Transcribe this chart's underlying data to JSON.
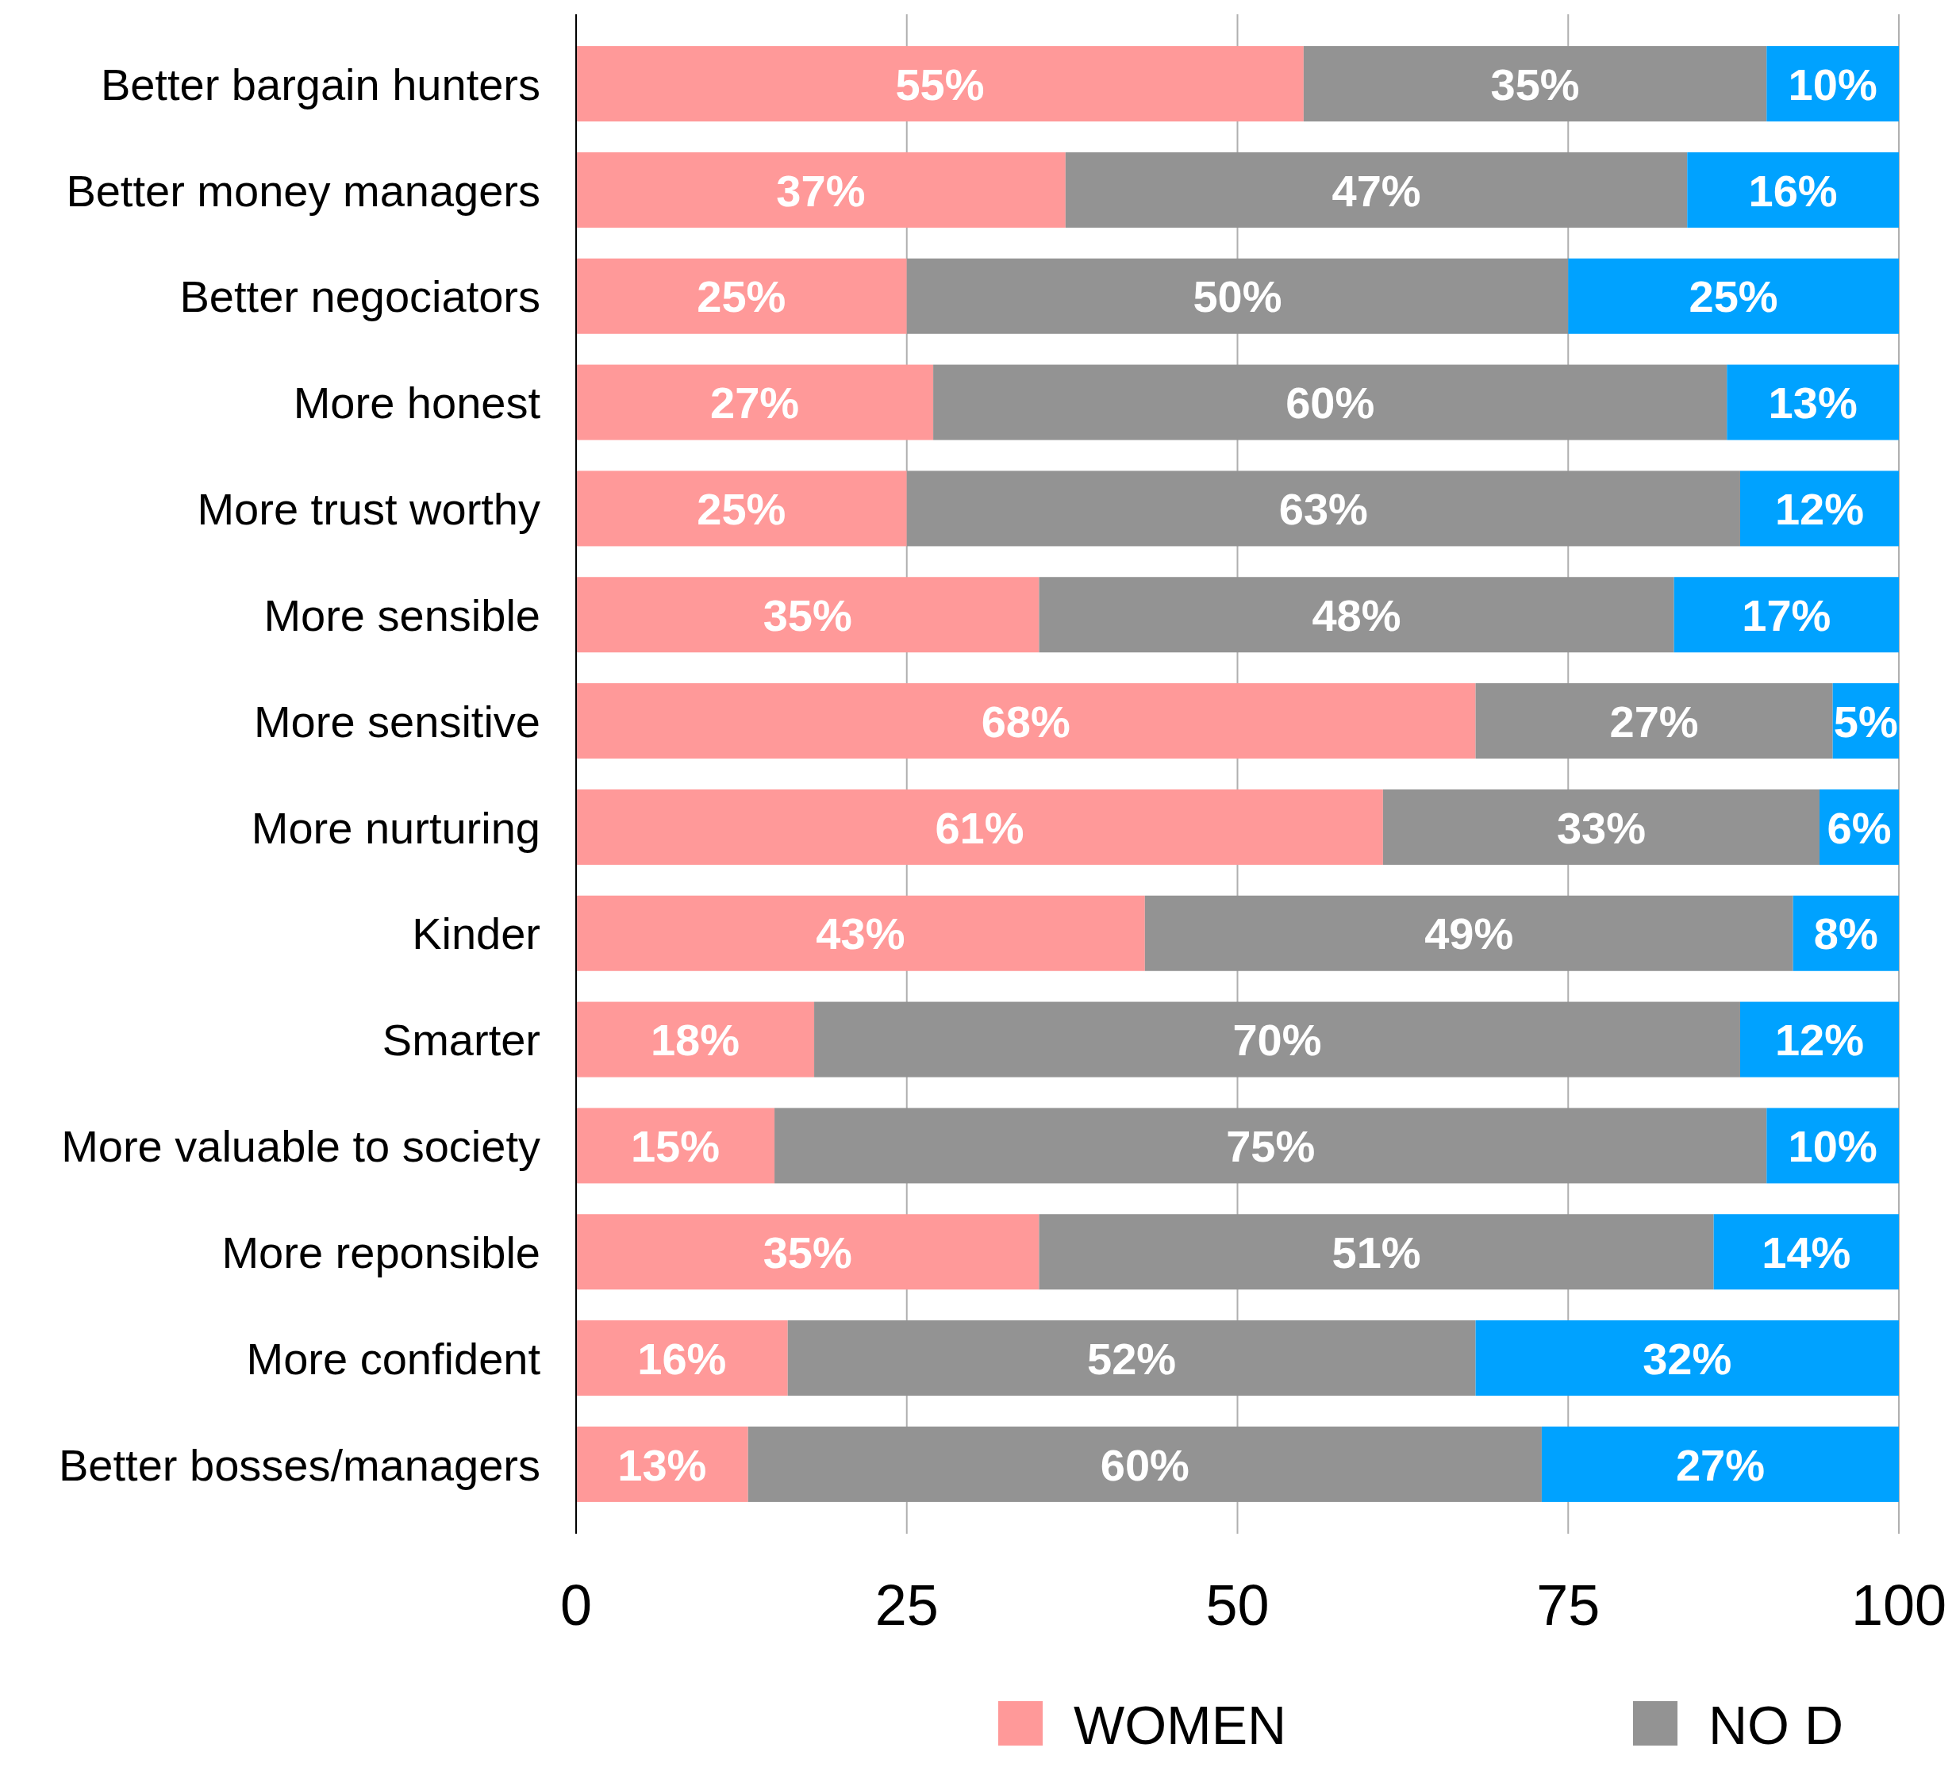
{
  "chart_data": {
    "type": "bar",
    "orientation": "horizontal",
    "stacked": true,
    "grid": "x",
    "legend": "bottom",
    "categories": [
      "Better bargain hunters",
      "Better money managers",
      "Better negociators",
      "More honest",
      "More trust worthy",
      "More sensible",
      "More sensitive",
      "More nurturing",
      "Kinder",
      "Smarter",
      "More valuable to society",
      "More reponsible",
      "More confident",
      "Better bosses/managers"
    ],
    "series": [
      {
        "name": "WOMEN",
        "color": "#ff9999",
        "values": [
          55,
          37,
          25,
          27,
          25,
          35,
          68,
          61,
          43,
          18,
          15,
          35,
          16,
          13
        ],
        "value_labels": [
          "55%",
          "37%",
          "25%",
          "27%",
          "25%",
          "35%",
          "68%",
          "61%",
          "43%",
          "18%",
          "15%",
          "35%",
          "16%",
          "13%"
        ]
      },
      {
        "name": "NO D",
        "color": "#939393",
        "values": [
          35,
          47,
          50,
          60,
          63,
          48,
          27,
          33,
          49,
          70,
          75,
          51,
          52,
          60
        ],
        "value_labels": [
          "35%",
          "47%",
          "50%",
          "60%",
          "63%",
          "48%",
          "27%",
          "33%",
          "49%",
          "70%",
          "75%",
          "51%",
          "52%",
          "60%"
        ]
      },
      {
        "color": "#00a2ff",
        "values": [
          10,
          16,
          25,
          13,
          12,
          17,
          5,
          6,
          8,
          12,
          10,
          14,
          32,
          27
        ],
        "value_labels": [
          "10%",
          "16%",
          "25%",
          "13%",
          "12%",
          "17%",
          "5%",
          "6%",
          "8%",
          "12%",
          "10%",
          "14%",
          "32%",
          "27%"
        ]
      }
    ],
    "xlim": [
      0,
      100
    ],
    "xticks": [
      0,
      25,
      50,
      75,
      100
    ]
  }
}
